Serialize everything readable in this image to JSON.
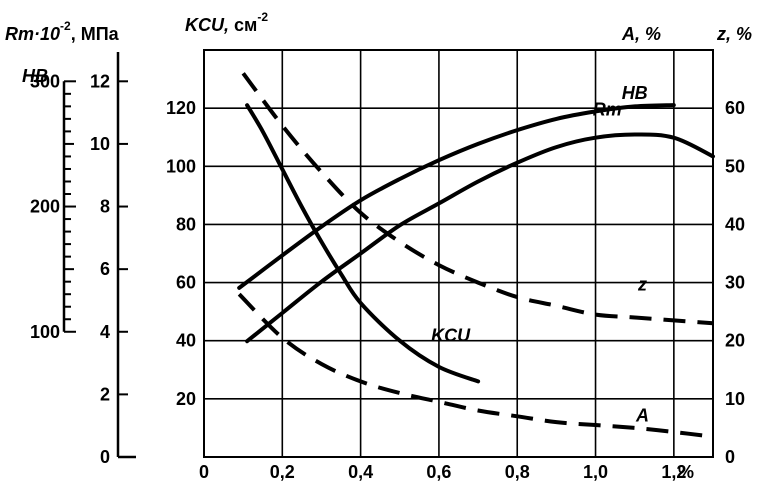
{
  "chart_data": {
    "type": "line",
    "x_axis": {
      "min": 0,
      "max": 1.3,
      "ticks": [
        0,
        0.2,
        0.4,
        0.6,
        0.8,
        1.0,
        1.2
      ],
      "tick_labels": [
        "0",
        "0,2",
        "0,4",
        "0,6",
        "0,8",
        "1,0",
        "1,2"
      ],
      "unit": "%"
    },
    "left_axes": {
      "hb": {
        "title_main": "HB",
        "min": 100,
        "max": 300,
        "minor_step": 10,
        "ticks": [
          100,
          200,
          300
        ],
        "tick_labels": [
          "100",
          "200",
          "300"
        ]
      },
      "rm": {
        "title_main": "Rm·10",
        "title_exp": "-2",
        "title_unit": ", МПа",
        "min": 0,
        "max": 13,
        "ticks": [
          0,
          2,
          4,
          6,
          8,
          10,
          12
        ],
        "tick_labels": [
          "0",
          "2",
          "4",
          "6",
          "8",
          "10",
          "12"
        ]
      },
      "kcu": {
        "title_main": "KCU,",
        "title_unit": " см",
        "title_exp": "-2",
        "min": 0,
        "max": 140,
        "ticks": [
          20,
          40,
          60,
          80,
          100,
          120
        ],
        "tick_labels": [
          "20",
          "40",
          "60",
          "80",
          "100",
          "120"
        ]
      }
    },
    "right_axis": {
      "title_a": "A, %",
      "title_z": "z, %",
      "min": 0,
      "max": 70,
      "ticks": [
        0,
        10,
        20,
        30,
        40,
        50,
        60
      ],
      "tick_labels": [
        "0",
        "10",
        "20",
        "30",
        "40",
        "50",
        "60"
      ]
    },
    "series": [
      {
        "name": "HB",
        "axis": "hb",
        "style": "solid",
        "label_x": 1.1,
        "label_y": 286,
        "x": [
          0.09,
          0.2,
          0.3,
          0.4,
          0.5,
          0.6,
          0.7,
          0.8,
          0.9,
          1.0,
          1.1,
          1.2
        ],
        "y": [
          135,
          161,
          184,
          205,
          222,
          237,
          250,
          261,
          270,
          276,
          280,
          281
        ]
      },
      {
        "name": "Rm",
        "axis": "rm",
        "style": "solid",
        "label_x": 1.03,
        "label_y": 10.9,
        "x": [
          0.11,
          0.2,
          0.3,
          0.4,
          0.5,
          0.6,
          0.7,
          0.8,
          0.9,
          1.0,
          1.1,
          1.2,
          1.3
        ],
        "y": [
          3.7,
          4.6,
          5.6,
          6.5,
          7.4,
          8.1,
          8.8,
          9.4,
          9.9,
          10.2,
          10.3,
          10.2,
          9.6
        ]
      },
      {
        "name": "KCU",
        "axis": "kcu",
        "style": "solid",
        "label_x": 0.63,
        "label_y": 39.7,
        "x": [
          0.11,
          0.15,
          0.2,
          0.25,
          0.3,
          0.35,
          0.4,
          0.5,
          0.6,
          0.7
        ],
        "y": [
          121,
          112,
          99,
          86,
          74,
          63,
          53,
          40,
          31,
          26
        ]
      },
      {
        "name": "z",
        "axis": "right",
        "style": "dashed",
        "label_x": 1.12,
        "label_y": 28.6,
        "x": [
          0.1,
          0.2,
          0.3,
          0.4,
          0.5,
          0.6,
          0.7,
          0.8,
          0.9,
          1.0,
          1.1,
          1.2,
          1.3
        ],
        "y": [
          66,
          57,
          49,
          42,
          37,
          33,
          30,
          27.5,
          26,
          24.5,
          24,
          23.5,
          23
        ]
      },
      {
        "name": "A",
        "axis": "right",
        "style": "dashed",
        "label_x": 1.12,
        "label_y": 6.1,
        "x": [
          0.09,
          0.2,
          0.3,
          0.4,
          0.5,
          0.6,
          0.7,
          0.8,
          0.9,
          1.0,
          1.1,
          1.2,
          1.3
        ],
        "y": [
          28,
          20.5,
          16,
          13,
          11,
          9.5,
          8,
          7,
          6,
          5.5,
          5,
          4.3,
          3.5
        ]
      }
    ]
  }
}
